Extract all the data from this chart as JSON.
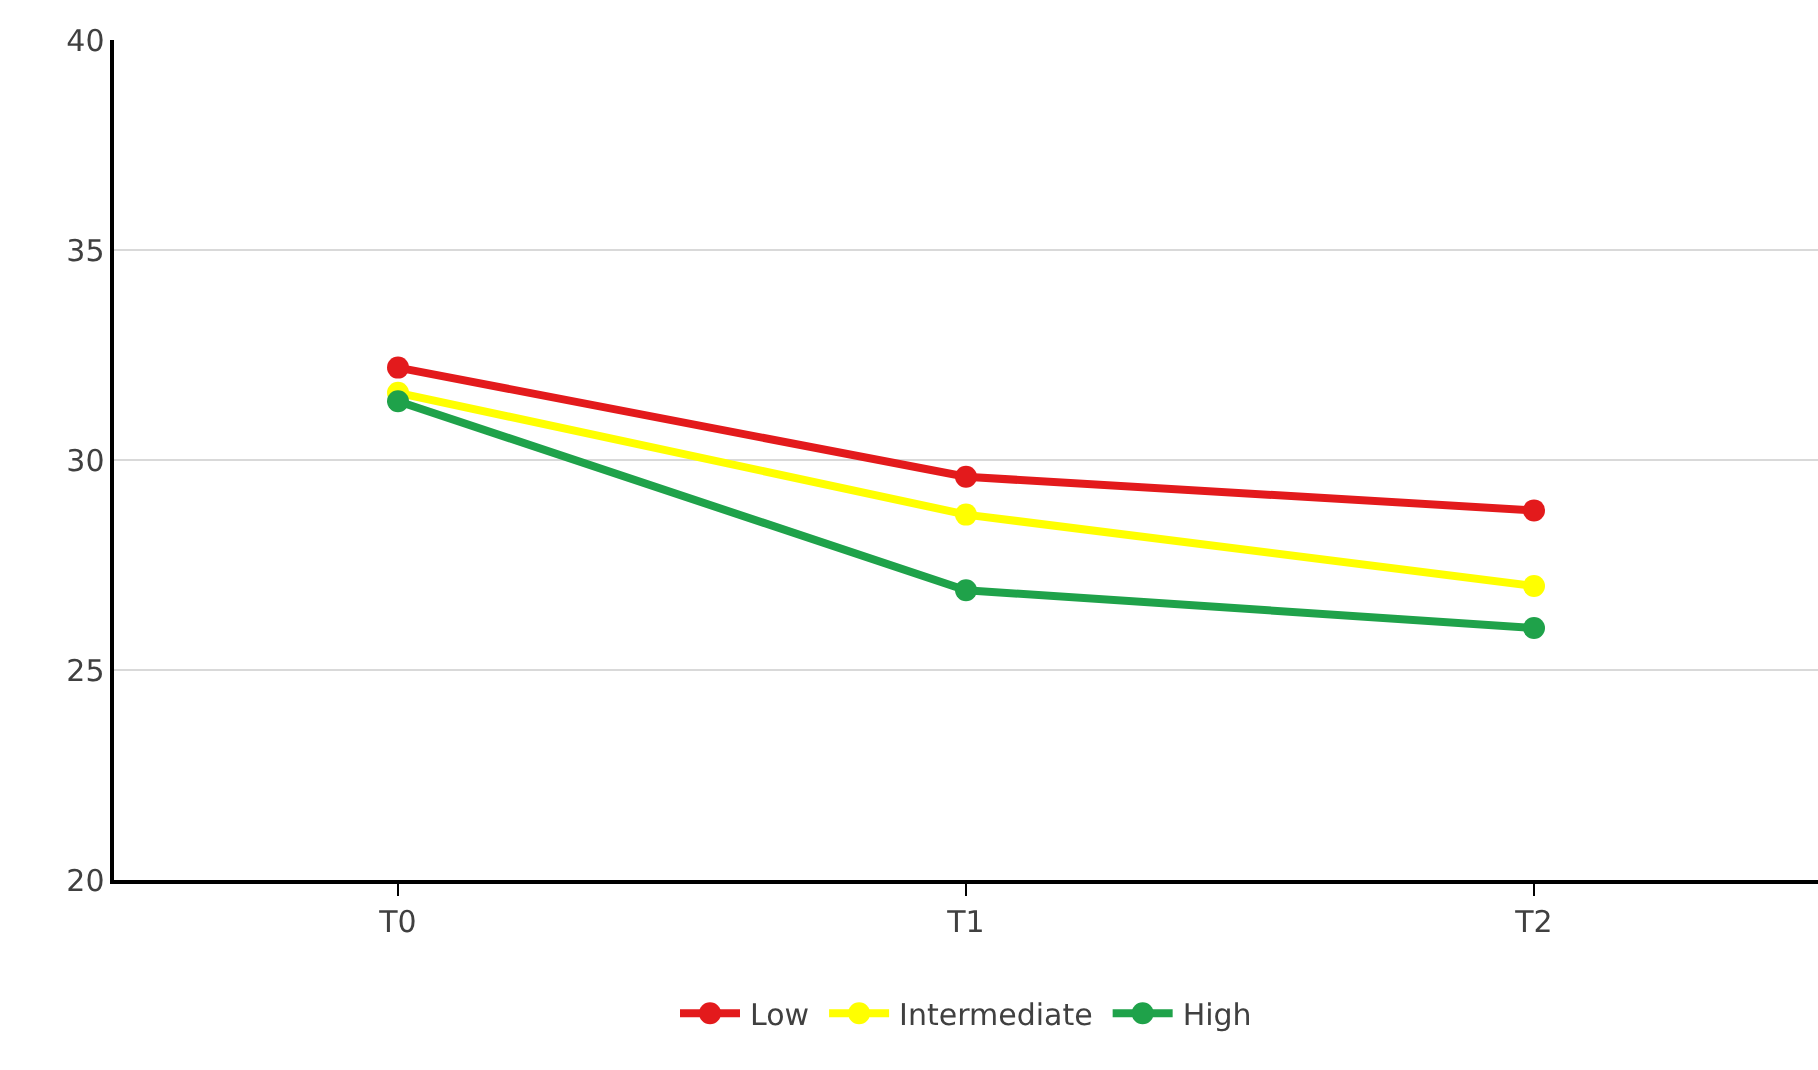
{
  "chart_data": {
    "type": "line",
    "categories": [
      "T0",
      "T1",
      "T2"
    ],
    "series": [
      {
        "name": "Low",
        "color": "#e31a1c",
        "values": [
          32.2,
          29.6,
          28.8
        ]
      },
      {
        "name": "Intermediate",
        "color": "#ffff00",
        "values": [
          31.6,
          28.7,
          27.0
        ]
      },
      {
        "name": "High",
        "color": "#1fa24a",
        "values": [
          31.4,
          26.9,
          26.0
        ]
      }
    ],
    "ylim": [
      20,
      40
    ],
    "yticks": [
      20,
      25,
      30,
      35,
      40
    ],
    "grid": "y",
    "legend": "bottom",
    "marker": "circle",
    "line_style": "solid"
  }
}
